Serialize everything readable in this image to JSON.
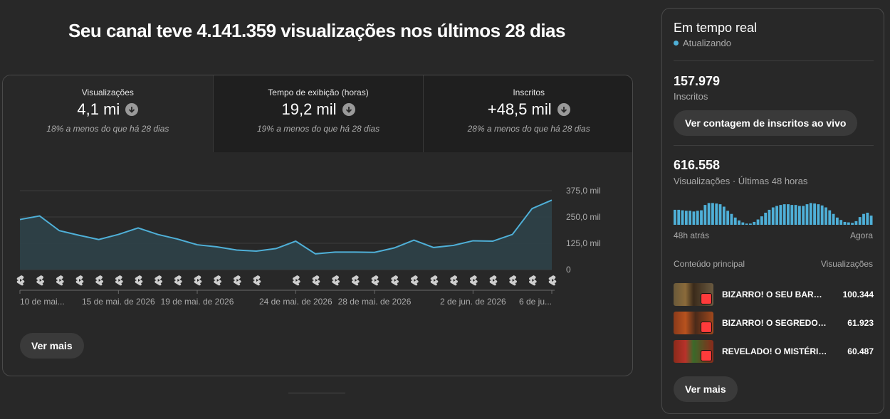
{
  "headline": "Seu canal teve 4.141.359 visualizações nos últimos 28 dias",
  "tabs": [
    {
      "label": "Visualizações",
      "value": "4,1 mi",
      "note": "18% a menos do que há 28 dias"
    },
    {
      "label": "Tempo de exibição (horas)",
      "value": "19,2 mil",
      "note": "19% a menos do que há 28 dias"
    },
    {
      "label": "Inscritos",
      "value": "+48,5 mil",
      "note": "28% a menos do que há 28 dias"
    }
  ],
  "chart_data": {
    "type": "area",
    "series": [
      {
        "values": [
          238000,
          255000,
          185000,
          163000,
          143000,
          167000,
          198000,
          167000,
          145000,
          118000,
          108000,
          93000,
          88000,
          100000,
          135000,
          75000,
          83000,
          83000,
          82000,
          103000,
          140000,
          105000,
          115000,
          137000,
          135000,
          167000,
          290000,
          330000
        ]
      }
    ],
    "y_ticks": [
      "375,0 mil",
      "250,0 mil",
      "125,0 mil",
      "0"
    ],
    "ylim": [
      0,
      375000
    ],
    "x_labels": [
      "10 de mai...",
      "15 de mai. de 2026",
      "19 de mai. de 2026",
      "24 de mai. de 2026",
      "28 de mai. de 2026",
      "2 de jun. de 2026",
      "6 de ju..."
    ],
    "grid": true,
    "color": "#4fb0d8"
  },
  "ver_mais": "Ver mais",
  "realtime": {
    "title": "Em tempo real",
    "status": "Atualizando",
    "subs_value": "157.979",
    "subs_label": "Inscritos",
    "live_button": "Ver contagem de inscritos ao vivo",
    "views_value": "616.558",
    "views_label": "Visualizações · Últimas 48 horas",
    "bars": [
      0.62,
      0.62,
      0.6,
      0.58,
      0.58,
      0.55,
      0.58,
      0.6,
      0.82,
      0.9,
      0.9,
      0.88,
      0.85,
      0.75,
      0.58,
      0.45,
      0.3,
      0.18,
      0.1,
      0.05,
      0.05,
      0.12,
      0.22,
      0.35,
      0.5,
      0.62,
      0.72,
      0.78,
      0.82,
      0.85,
      0.85,
      0.82,
      0.82,
      0.78,
      0.78,
      0.85,
      0.9,
      0.88,
      0.85,
      0.8,
      0.72,
      0.6,
      0.45,
      0.3,
      0.2,
      0.12,
      0.1,
      0.08,
      0.15,
      0.32,
      0.45,
      0.5,
      0.38
    ],
    "axis_left": "48h atrás",
    "axis_right": "Agora",
    "list_header_left": "Conteúdo principal",
    "list_header_right": "Visualizações",
    "items": [
      {
        "title": "BIZARRO! O SEU BARRACO...",
        "views": "100.344"
      },
      {
        "title": "BIZARRO! O SEGREDO do...",
        "views": "61.923"
      },
      {
        "title": "REVELADO! O MISTÉRIO...",
        "views": "60.487"
      }
    ],
    "ver_mais": "Ver mais"
  }
}
